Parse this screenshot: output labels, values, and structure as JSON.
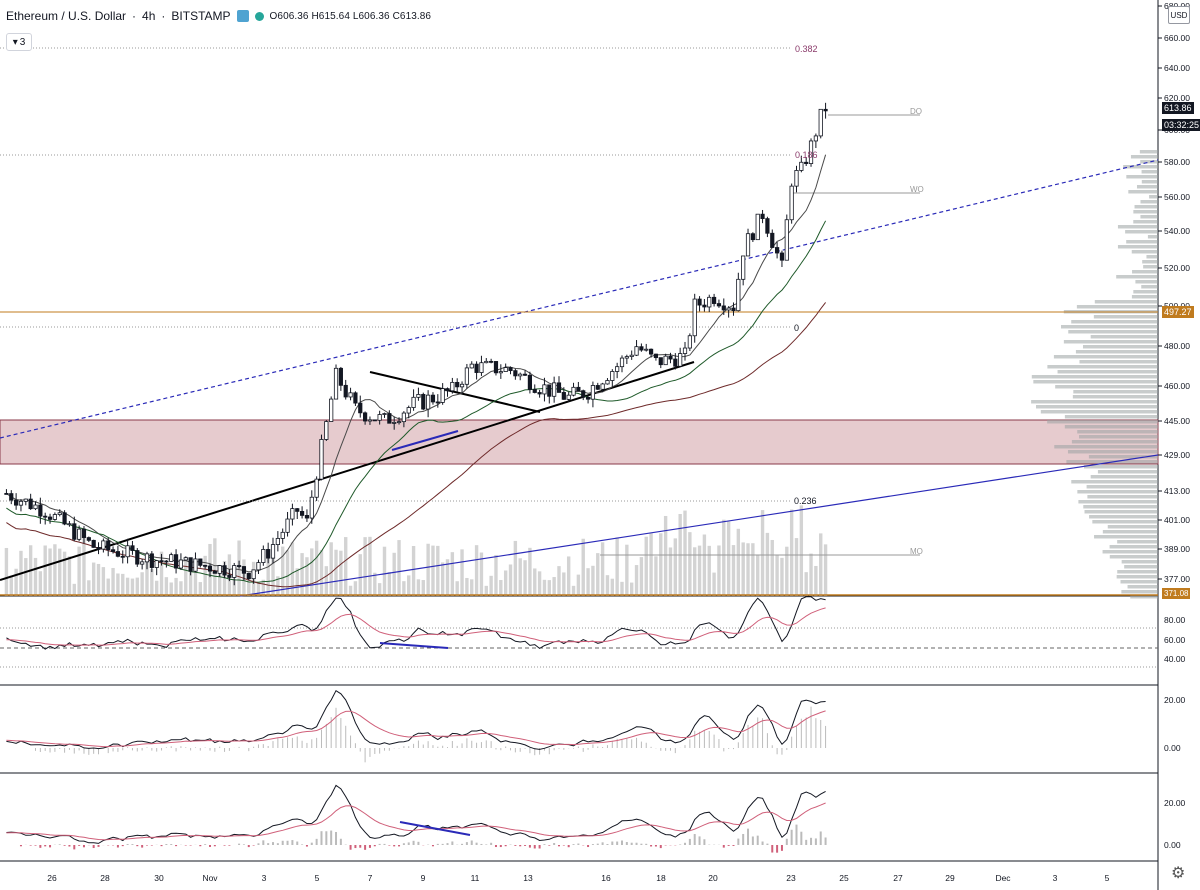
{
  "header": {
    "symbol": "Ethereum / U.S. Dollar",
    "interval": "4h",
    "exchange": "BITSTAMP",
    "ohlc": "O606.36 H615.64 L606.36 C613.86",
    "collapse_count": "3"
  },
  "price_axis": {
    "currency": "USD",
    "labels": [
      "680.00",
      "660.00",
      "640.00",
      "620.00",
      "600.00",
      "580.00",
      "560.00",
      "540.00",
      "520.00",
      "500.00",
      "480.00",
      "460.00",
      "445.00",
      "429.00",
      "413.00",
      "401.00",
      "389.00",
      "377.00"
    ],
    "current_price": "613.86",
    "countdown": "03:32:25",
    "level_price": "497.27",
    "bottom_price": "371.08"
  },
  "rsi_axis": {
    "labels": [
      "80.00",
      "60.00",
      "40.00"
    ]
  },
  "macd1_axis": {
    "labels": [
      "20.00",
      "0.00"
    ]
  },
  "macd2_axis": {
    "labels": [
      "20.00",
      "0.00"
    ]
  },
  "time_axis": {
    "labels": [
      "26",
      "28",
      "30",
      "Nov",
      "3",
      "5",
      "7",
      "9",
      "11",
      "13",
      "16",
      "18",
      "20",
      "23",
      "25",
      "27",
      "29",
      "Dec",
      "3",
      "5"
    ]
  },
  "annotations": {
    "fib_0382": "0.382",
    "fib_0236": "0.236",
    "fib_0186": "0.186",
    "fib_0": "0",
    "do_label": "DO",
    "wo_label": "WO",
    "mo_label": "MO"
  },
  "colors": {
    "bull": "#ffffff",
    "bear": "#131722",
    "trendline": "#000000",
    "blue_line": "#2a2ab8",
    "zone_fill": "#e2c2c6",
    "gold": "#c07b1e",
    "ma_fast": "#4a4a4a",
    "ma_mid": "#1f5a2a",
    "ma_slow": "#6e2a2a",
    "oscillator_signal": "#d0607a"
  },
  "icons": [
    "eye-icon",
    "settings-gear-icon",
    "chevron-up-icon"
  ]
}
